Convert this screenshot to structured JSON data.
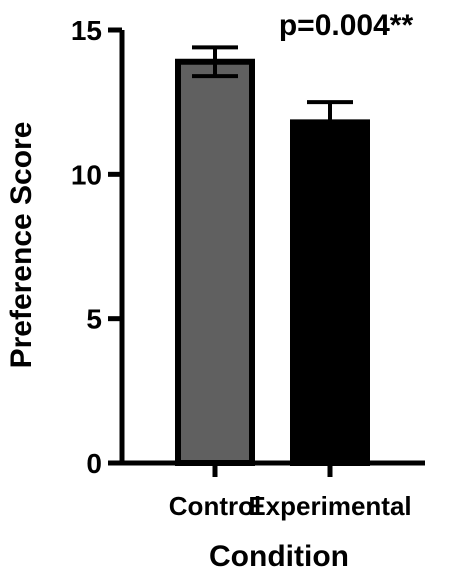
{
  "chart_data": {
    "type": "bar",
    "title": "",
    "xlabel": "Condition",
    "ylabel": "Preference Score",
    "categories": [
      "Control",
      "Experimental"
    ],
    "series": [
      {
        "values": [
          13.9,
          11.8
        ],
        "error_upper": [
          14.4,
          12.5
        ],
        "error_lower": [
          13.4,
          11.8
        ],
        "colors": [
          "#606060",
          "#000000"
        ]
      }
    ],
    "ylim": [
      0,
      15
    ],
    "yticks": [
      0,
      5,
      10,
      15
    ],
    "ytick_labels": [
      "0",
      "5",
      "10",
      "15"
    ],
    "grid": false,
    "annotation": "p=0.004**"
  }
}
